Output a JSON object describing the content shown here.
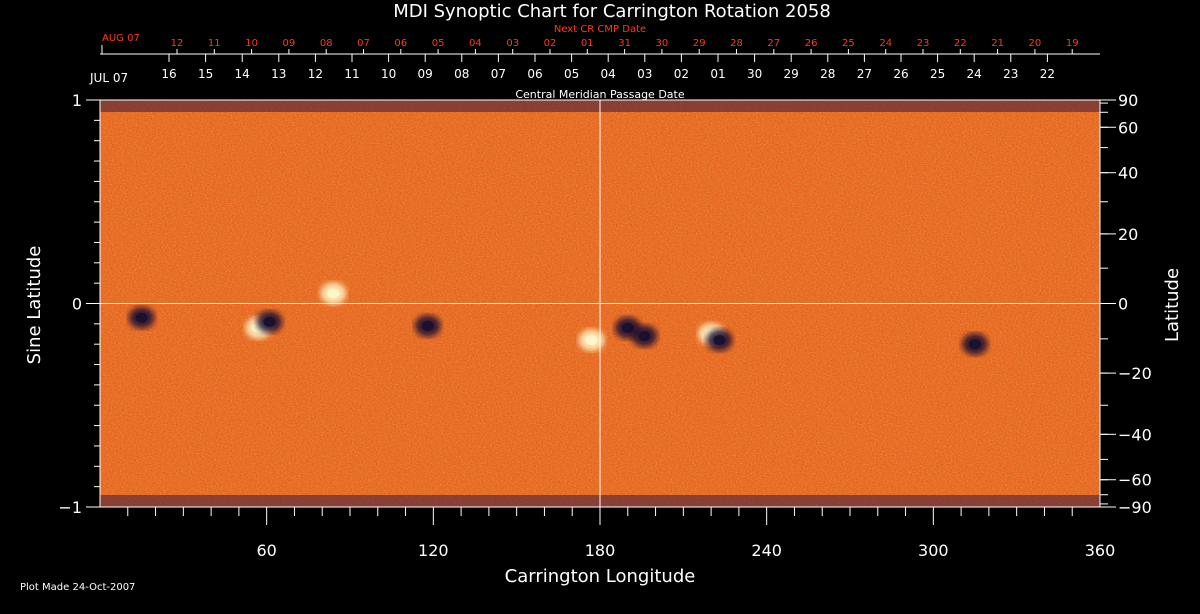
{
  "colors": {
    "background": "#000000",
    "axis": "#ffffff",
    "top_axis_red": "#ff3a1a",
    "field_base": "#e2551c",
    "positive_polarity": "#fff6c8",
    "negative_polarity": "#1a1030"
  },
  "footer": {
    "plot_made": "Plot Made 24-Oct-2007"
  },
  "top_axes": {
    "next_cr_label": "Next CR CMP Date",
    "next_cr_start": "AUG 07",
    "next_cr_ticks": [
      "12",
      "11",
      "10",
      "09",
      "08",
      "07",
      "06",
      "05",
      "04",
      "03",
      "02",
      "01",
      "31",
      "30",
      "29",
      "28",
      "27",
      "26",
      "25",
      "24",
      "23",
      "22",
      "21",
      "20",
      "19"
    ],
    "cmp_label": "Central Meridian Passage Date",
    "cmp_start": "JUL 07",
    "cmp_ticks": [
      "16",
      "15",
      "14",
      "13",
      "12",
      "11",
      "10",
      "09",
      "08",
      "07",
      "06",
      "05",
      "04",
      "03",
      "02",
      "01",
      "30",
      "29",
      "28",
      "27",
      "26",
      "25",
      "24",
      "23",
      "22"
    ]
  },
  "chart_data": {
    "type": "heatmap",
    "title": "MDI Synoptic Chart for Carrington Rotation 2058",
    "xlabel": "Carrington Longitude",
    "ylabel_left": "Sine Latitude",
    "ylabel_right": "Latitude",
    "xlim": [
      0,
      360
    ],
    "ylim": [
      -1,
      1
    ],
    "x_ticks": [
      60,
      120,
      180,
      240,
      300,
      360
    ],
    "y_ticks_left": [
      -1,
      0,
      1
    ],
    "y_tick_labels_left": [
      "−1",
      "0",
      "1"
    ],
    "y_ticks_right_deg": [
      90,
      60,
      40,
      20,
      0,
      -20,
      -40,
      -60,
      -90
    ],
    "y_tick_labels_right": [
      "90",
      "60",
      "40",
      "20",
      "0",
      "−20",
      "−40",
      "−60",
      "−90"
    ],
    "reference_lines": {
      "x": 180,
      "y": 0
    },
    "active_regions": [
      {
        "lon": 15,
        "sinlat": -0.07,
        "polarity": "negative"
      },
      {
        "lon": 57,
        "sinlat": -0.12,
        "polarity": "positive"
      },
      {
        "lon": 61,
        "sinlat": -0.09,
        "polarity": "negative"
      },
      {
        "lon": 84,
        "sinlat": 0.05,
        "polarity": "positive"
      },
      {
        "lon": 118,
        "sinlat": -0.11,
        "polarity": "negative"
      },
      {
        "lon": 177,
        "sinlat": -0.18,
        "polarity": "positive"
      },
      {
        "lon": 190,
        "sinlat": -0.12,
        "polarity": "negative"
      },
      {
        "lon": 196,
        "sinlat": -0.16,
        "polarity": "negative"
      },
      {
        "lon": 220,
        "sinlat": -0.15,
        "polarity": "positive"
      },
      {
        "lon": 223,
        "sinlat": -0.18,
        "polarity": "negative"
      },
      {
        "lon": 315,
        "sinlat": -0.2,
        "polarity": "negative"
      }
    ]
  }
}
